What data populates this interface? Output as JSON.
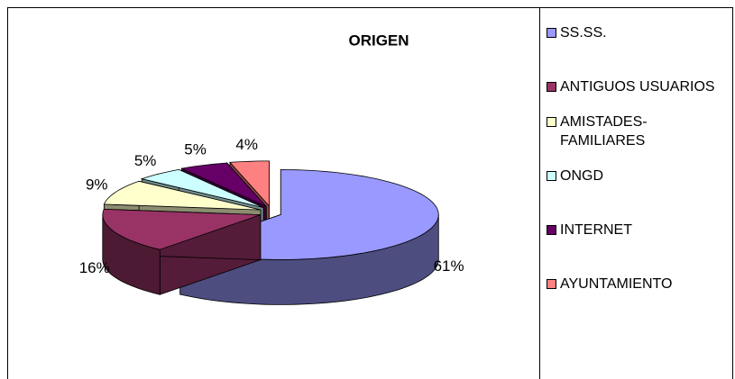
{
  "chart_data": {
    "type": "pie3d",
    "title": "ORIGEN",
    "categories": [
      "SS.SS.",
      "ANTIGUOS USUARIOS",
      "AMISTADES-FAMILIARES",
      "ONGD",
      "INTERNET",
      "AYUNTAMIENTO"
    ],
    "values": [
      61,
      16,
      9,
      5,
      5,
      4
    ],
    "value_labels": [
      "61%",
      "16%",
      "9%",
      "5%",
      "5%",
      "4%"
    ],
    "colors": [
      "#9999ff",
      "#993366",
      "#ffffcc",
      "#ccffff",
      "#660066",
      "#ff8080"
    ],
    "legend": "right"
  }
}
